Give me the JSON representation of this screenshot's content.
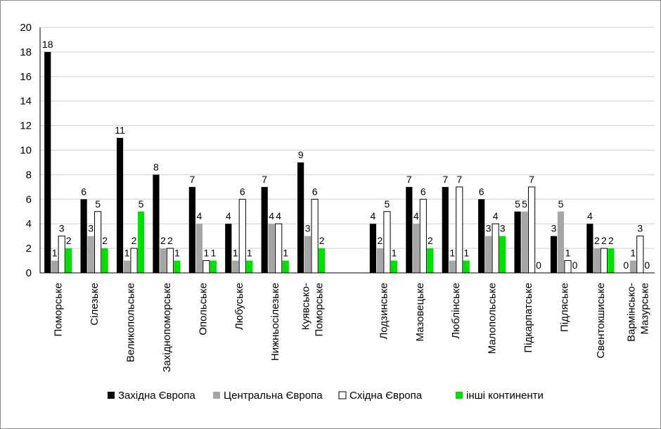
{
  "chart_data": {
    "type": "bar",
    "title": "",
    "xlabel": "",
    "ylabel": "",
    "ylim": [
      0,
      20
    ],
    "yticks": [
      0,
      2,
      4,
      6,
      8,
      10,
      12,
      14,
      16,
      18,
      20
    ],
    "grid": true,
    "legend_position": "bottom",
    "categories": [
      "Поморське",
      "Сілезьке",
      "Великопольське",
      "Західнопоморське",
      "Опольське",
      "Любуське",
      "Нижньосілезьке",
      "Куявсько-Поморське",
      "",
      "Лодзинське",
      "Мазовецьке",
      "Люблінське",
      "Малопольське",
      "Підкарпатське",
      "Підляське",
      "Свентокшиське",
      "Вармінсько-Мазурське"
    ],
    "series": [
      {
        "name": "Західна Європа",
        "color": "#000000",
        "values": [
          18,
          6,
          11,
          8,
          7,
          4,
          7,
          9,
          null,
          4,
          7,
          7,
          6,
          5,
          3,
          4,
          0
        ]
      },
      {
        "name": "Центральна Європа",
        "color": "#a6a6a6",
        "values": [
          1,
          3,
          1,
          2,
          4,
          1,
          4,
          3,
          null,
          2,
          4,
          1,
          3,
          5,
          5,
          2,
          1
        ]
      },
      {
        "name": "Східна Європа",
        "color": "#ffffff",
        "values": [
          3,
          5,
          2,
          2,
          1,
          6,
          4,
          6,
          null,
          5,
          6,
          7,
          4,
          7,
          1,
          2,
          3
        ]
      },
      {
        "name": "інші континенти",
        "color": "#00e000",
        "values": [
          2,
          2,
          5,
          1,
          1,
          1,
          1,
          2,
          null,
          1,
          2,
          1,
          3,
          0,
          0,
          2,
          0
        ]
      }
    ]
  }
}
